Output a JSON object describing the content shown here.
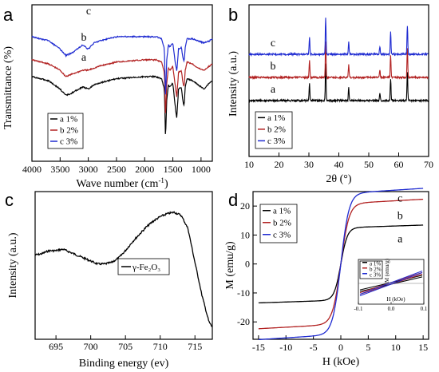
{
  "chart_data": [
    {
      "panel": "a",
      "type": "line",
      "xlabel": "Wave number (cm",
      "xlabel_sup": "-1",
      "xlabel_end": ")",
      "ylabel": "Transmittance (%)",
      "xlim": [
        4000,
        800
      ],
      "xticks": [
        4000,
        3500,
        3000,
        2500,
        2000,
        1500,
        1000
      ],
      "grid": false,
      "legend": [
        "a 1%",
        "b 2%",
        "c 3%"
      ],
      "legend_position": "bottom-left",
      "series": [
        {
          "name": "a 1%",
          "color": "#000000",
          "label": "a",
          "offset": 0,
          "x": [
            4000,
            3700,
            3500,
            3400,
            3300,
            3100,
            3000,
            2900,
            2800,
            2500,
            2000,
            1800,
            1700,
            1650,
            1630,
            1610,
            1580,
            1550,
            1500,
            1460,
            1430,
            1400,
            1350,
            1320,
            1300,
            1280,
            1250,
            1150,
            1050,
            950,
            850,
            800
          ],
          "y": [
            0,
            -2,
            -6,
            -9,
            -8,
            -5,
            -6,
            -4,
            -3,
            -1,
            0,
            0,
            -1,
            -6,
            -30,
            -12,
            -4,
            -5,
            -3,
            -14,
            -20,
            -6,
            -5,
            -12,
            -14,
            -5,
            -1,
            -2,
            -4,
            -6,
            -3,
            -2
          ]
        },
        {
          "name": "b 2%",
          "color": "#b22222",
          "label": "b",
          "offset": 0,
          "x": [
            4000,
            3700,
            3500,
            3400,
            3300,
            3100,
            3000,
            2900,
            2800,
            2500,
            2000,
            1800,
            1700,
            1650,
            1630,
            1610,
            1580,
            1550,
            1500,
            1460,
            1430,
            1400,
            1350,
            1320,
            1300,
            1280,
            1250,
            1150,
            1050,
            950,
            850,
            800
          ],
          "y": [
            0,
            -2,
            -5,
            -8,
            -7,
            -5,
            -5,
            -4,
            -3,
            -1,
            0,
            0,
            -1,
            -6,
            -28,
            -12,
            -4,
            -5,
            -3,
            -12,
            -18,
            -6,
            -5,
            -11,
            -13,
            -5,
            -1,
            -2,
            -4,
            -5,
            -3,
            -2
          ]
        },
        {
          "name": "c 3%",
          "color": "#1f2bd1",
          "label": "c",
          "offset": 0,
          "x": [
            4000,
            3700,
            3500,
            3400,
            3300,
            3100,
            3000,
            2900,
            2800,
            2500,
            2000,
            1800,
            1700,
            1650,
            1630,
            1610,
            1580,
            1550,
            1500,
            1460,
            1430,
            1400,
            1350,
            1320,
            1300,
            1280,
            1250,
            1150,
            1050,
            950,
            850,
            800
          ],
          "y": [
            0,
            -2,
            -6,
            -9,
            -8,
            -4,
            -6,
            -3,
            -2,
            0,
            0,
            0,
            -1,
            -6,
            -30,
            -12,
            -4,
            -5,
            -3,
            -12,
            -17,
            -6,
            -5,
            -10,
            -12,
            -5,
            -1,
            -1,
            -2,
            -3,
            -2,
            -1
          ]
        }
      ]
    },
    {
      "panel": "b",
      "type": "line",
      "xlabel": "2θ (°)",
      "ylabel": "Intensity (a.u.)",
      "xlim": [
        10,
        70
      ],
      "xticks": [
        10,
        20,
        30,
        40,
        50,
        60,
        70
      ],
      "grid": false,
      "legend": [
        "a 1%",
        "b 2%",
        "c 3%"
      ],
      "legend_position": "bottom-left",
      "peaks_2theta": [
        30.2,
        35.6,
        43.3,
        53.7,
        57.3,
        62.9
      ],
      "peak_heights": [
        22,
        46,
        16,
        10,
        28,
        36
      ],
      "series": [
        {
          "name": "a 1%",
          "color": "#000000",
          "label": "a"
        },
        {
          "name": "b 2%",
          "color": "#b22222",
          "label": "b"
        },
        {
          "name": "c 3%",
          "color": "#1f2bd1",
          "label": "c"
        }
      ]
    },
    {
      "panel": "c",
      "type": "line",
      "xlabel": "Binding energy (ev)",
      "ylabel": "Intensity (a.u.)",
      "xlim": [
        692,
        717.5
      ],
      "xticks": [
        695,
        700,
        705,
        710,
        715
      ],
      "grid": false,
      "legend": [
        "γ-Fe₂O₃"
      ],
      "legend_position": "center",
      "series": [
        {
          "name": "γ-Fe₂O₃",
          "color": "#000000",
          "x": [
            692,
            693,
            694,
            695,
            696,
            697,
            698,
            699,
            700,
            701,
            702,
            703,
            704,
            705,
            706,
            707,
            708,
            709,
            710,
            711,
            712,
            713,
            714,
            715,
            716,
            717,
            717.5
          ],
          "y": [
            57,
            58,
            60,
            60,
            61,
            59,
            57,
            55,
            53,
            51,
            51,
            52,
            55,
            60,
            66,
            71,
            76,
            80,
            83,
            85,
            86,
            84,
            75,
            52,
            30,
            12,
            8
          ]
        }
      ]
    },
    {
      "panel": "d",
      "type": "line",
      "xlabel": "H (kOe)",
      "ylabel": "M (emu/g)",
      "xlim": [
        -16,
        16
      ],
      "ylim": [
        -26,
        25
      ],
      "xticks": [
        -15,
        -10,
        -5,
        0,
        5,
        10,
        15
      ],
      "yticks": [
        -20,
        -10,
        0,
        10,
        20
      ],
      "grid": false,
      "legend": [
        "a 1%",
        "b 2%",
        "c 3%"
      ],
      "legend_position": "top-left",
      "series": [
        {
          "name": "a 1%",
          "color": "#000000",
          "label": "a",
          "Ms": 12.5,
          "hk": 1.2
        },
        {
          "name": "b 2%",
          "color": "#b22222",
          "label": "b",
          "Ms": 20.8,
          "hk": 1.5
        },
        {
          "name": "c 3%",
          "color": "#1f2bd1",
          "label": "c",
          "Ms": 24.3,
          "hk": 1.5
        }
      ],
      "inset": {
        "xlabel": "H (kOe)",
        "ylabel": "M (emu/g)",
        "xticks": [
          -0.1,
          0.0,
          0.1
        ],
        "xtick_labels": [
          "-0.1",
          "0.0",
          "0.1"
        ],
        "legend": [
          "a 1%",
          "b 2%",
          "c 3%"
        ]
      }
    }
  ]
}
